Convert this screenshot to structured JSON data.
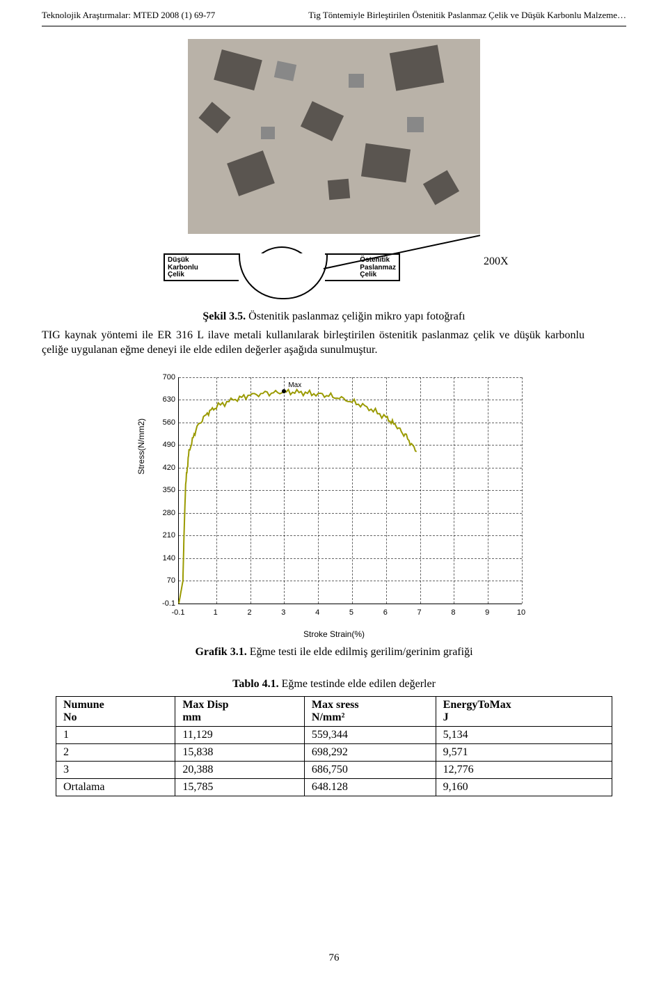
{
  "header": {
    "left": "Teknolojik Araştırmalar: MTED 2008 (1) 69-77",
    "right": "Tig Töntemiyle Birleştirilen Östenitik Paslanmaz Çelik ve Düşük Karbonlu Malzeme…"
  },
  "micrograph_magnification": "200X",
  "weld_labels": {
    "left_line1": "Düşük",
    "left_line2": "Karbonlu",
    "left_line3": "Çelik",
    "right_line1": "Östenitik",
    "right_line2": "Paslanmaz",
    "right_line3": "Çelik"
  },
  "figure_caption": {
    "label": "Şekil 3.5.",
    "text": " Östenitik paslanmaz çeliğin mikro yapı fotoğrafı"
  },
  "paragraph": "TIG kaynak yöntemi ile ER 316 L ilave metali kullanılarak birleştirilen östenitik paslanmaz çelik ve düşük karbonlu çeliğe uygulanan eğme deneyi ile elde edilen değerler aşağıda sunulmuştur.",
  "chart": {
    "type": "line",
    "ylabel": "Stress(N/mm2)",
    "xlabel": "Stroke Strain(%)",
    "ylim": [
      -0.1,
      700
    ],
    "yticks": [
      -0.1,
      70,
      140,
      210,
      280,
      350,
      420,
      490,
      560,
      630,
      700
    ],
    "xlim": [
      -0.1,
      10
    ],
    "xticks": [
      -0.1,
      1,
      2,
      3,
      4,
      5,
      6,
      7,
      8,
      9,
      10
    ],
    "line_color": "#9a9a00",
    "line_width": 2,
    "background_color": "#ffffff",
    "grid_color": "#000000",
    "grid_style": "dashed",
    "max_label": "Max",
    "max_point_x": 3.0,
    "max_point_y": 655,
    "curve_points": [
      [
        -0.1,
        -0.1
      ],
      [
        0.02,
        70
      ],
      [
        0.05,
        200
      ],
      [
        0.1,
        370
      ],
      [
        0.2,
        470
      ],
      [
        0.4,
        540
      ],
      [
        0.7,
        585
      ],
      [
        1.0,
        610
      ],
      [
        1.5,
        630
      ],
      [
        2.0,
        645
      ],
      [
        2.5,
        650
      ],
      [
        3.0,
        655
      ],
      [
        3.5,
        653
      ],
      [
        4.0,
        648
      ],
      [
        4.5,
        640
      ],
      [
        5.0,
        625
      ],
      [
        5.5,
        605
      ],
      [
        6.0,
        575
      ],
      [
        6.3,
        550
      ],
      [
        6.6,
        515
      ],
      [
        6.9,
        470
      ]
    ],
    "noise_amplitude": 10
  },
  "chart_caption": {
    "label": "Grafik 3.1.",
    "text": " Eğme testi ile elde edilmiş gerilim/gerinim grafiği"
  },
  "table_caption": {
    "label": "Tablo 4.1.",
    "text": " Eğme testinde elde edilen değerler"
  },
  "table": {
    "columns": [
      {
        "top": "Numune",
        "bottom": "No"
      },
      {
        "top": "Max Disp",
        "bottom": "mm"
      },
      {
        "top": "Max sress",
        "bottom": "N/mm²"
      },
      {
        "top": "EnergyToMax",
        "bottom": "J"
      }
    ],
    "rows": [
      [
        "1",
        "11,129",
        "559,344",
        "5,134"
      ],
      [
        "2",
        "15,838",
        "698,292",
        "9,571"
      ],
      [
        "3",
        "20,388",
        "686,750",
        "12,776"
      ],
      [
        "Ortalama",
        "15,785",
        "648.128",
        "9,160"
      ]
    ]
  },
  "page_number": "76"
}
